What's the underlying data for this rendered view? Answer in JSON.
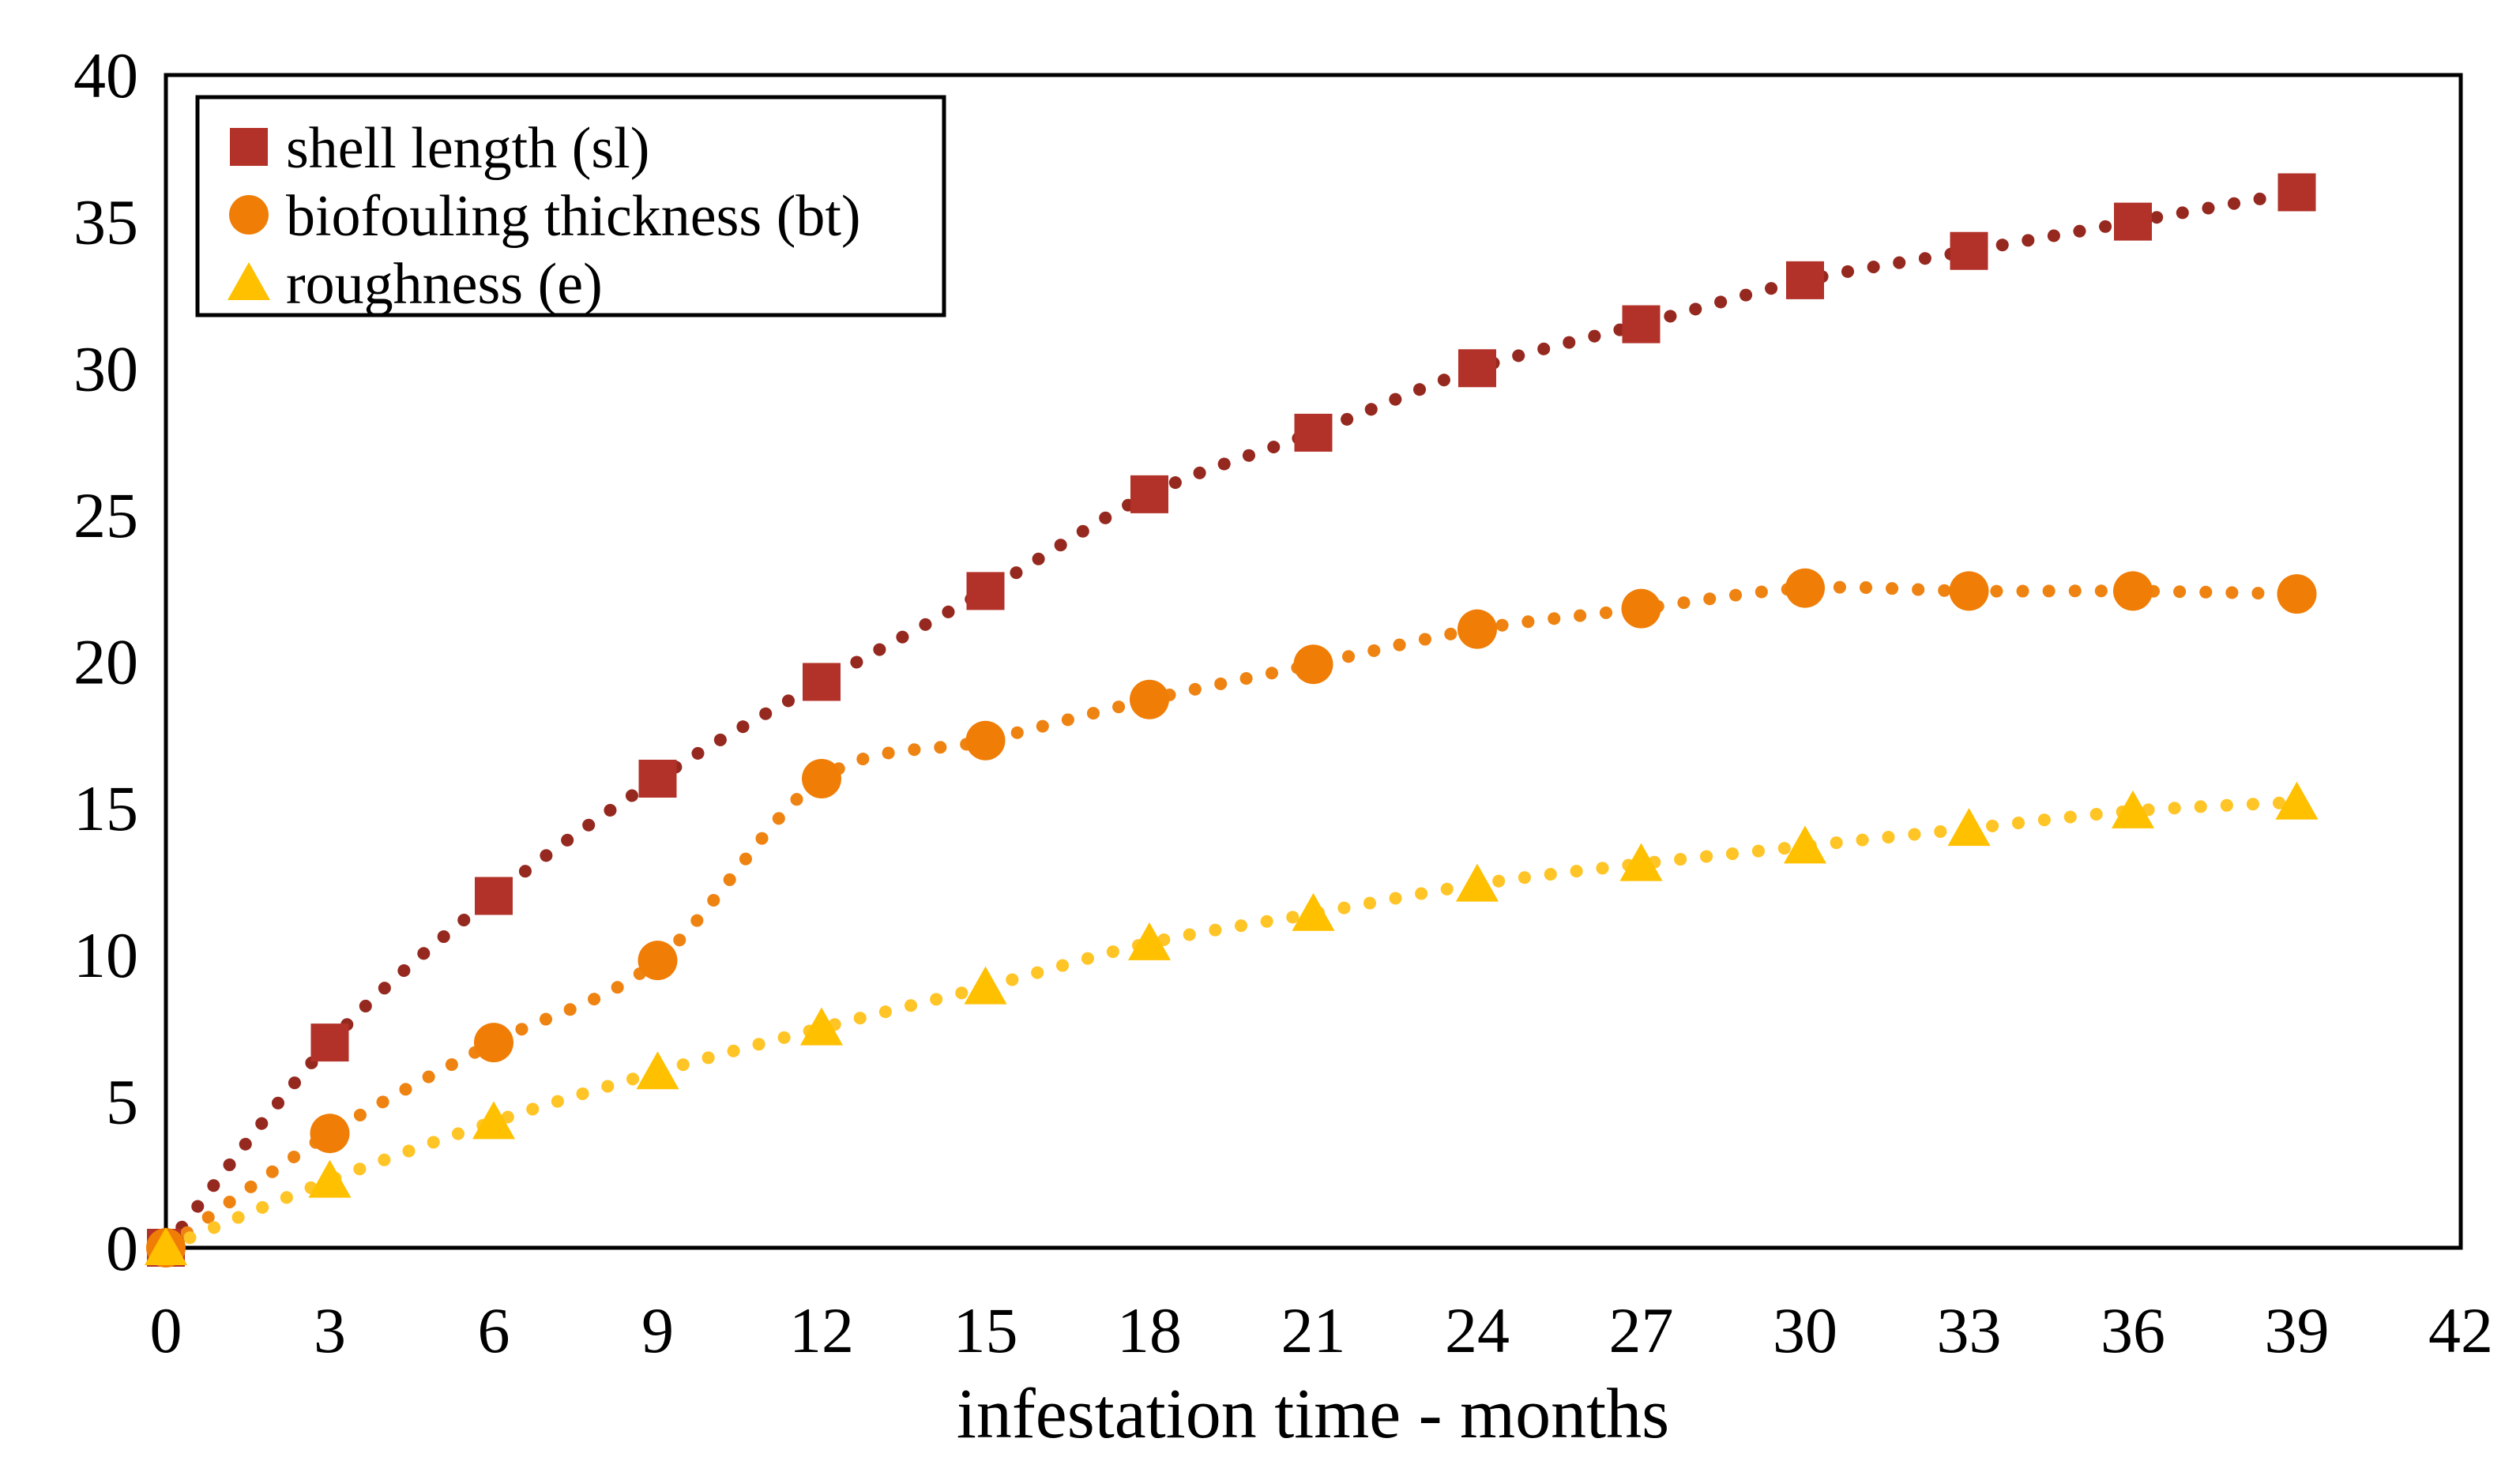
{
  "figure": {
    "background": "#ffffff",
    "plot_border_color": "#000000"
  },
  "chart_data": {
    "type": "scatter",
    "title": "",
    "xlabel": "infestation time - months",
    "ylabel": "",
    "xlim": [
      0,
      42
    ],
    "ylim": [
      0,
      40
    ],
    "x_ticks": [
      0,
      3,
      6,
      9,
      12,
      15,
      18,
      21,
      24,
      27,
      30,
      33,
      36,
      39,
      42
    ],
    "y_ticks": [
      0,
      5,
      10,
      15,
      20,
      25,
      30,
      35,
      40
    ],
    "grid": false,
    "legend_position": "top-left",
    "trendline_style": "dotted",
    "x": [
      0,
      3,
      6,
      9,
      12,
      15,
      18,
      21,
      24,
      27,
      30,
      33,
      36,
      39
    ],
    "series": [
      {
        "name": "shell length (sl)",
        "marker": "square",
        "marker_color": "#B23128",
        "line_color": "#96291F",
        "values": [
          0,
          7.0,
          12.0,
          16.0,
          19.3,
          22.4,
          25.7,
          27.8,
          30.0,
          31.5,
          33.0,
          34.0,
          35.0,
          36.0
        ]
      },
      {
        "name": "biofouling thickness (bt)",
        "marker": "circle",
        "marker_color": "#F07D05",
        "line_color": "#EE8312",
        "values": [
          0,
          3.9,
          7.0,
          9.8,
          16.0,
          17.3,
          18.7,
          19.9,
          21.1,
          21.8,
          22.5,
          22.4,
          22.4,
          22.3
        ]
      },
      {
        "name": "roughness (e)",
        "marker": "triangle",
        "marker_color": "#FFC000",
        "line_color": "#FFC425",
        "values": [
          0,
          2.3,
          4.3,
          6.0,
          7.5,
          8.9,
          10.4,
          11.4,
          12.4,
          13.1,
          13.7,
          14.3,
          14.9,
          15.2
        ]
      }
    ]
  }
}
